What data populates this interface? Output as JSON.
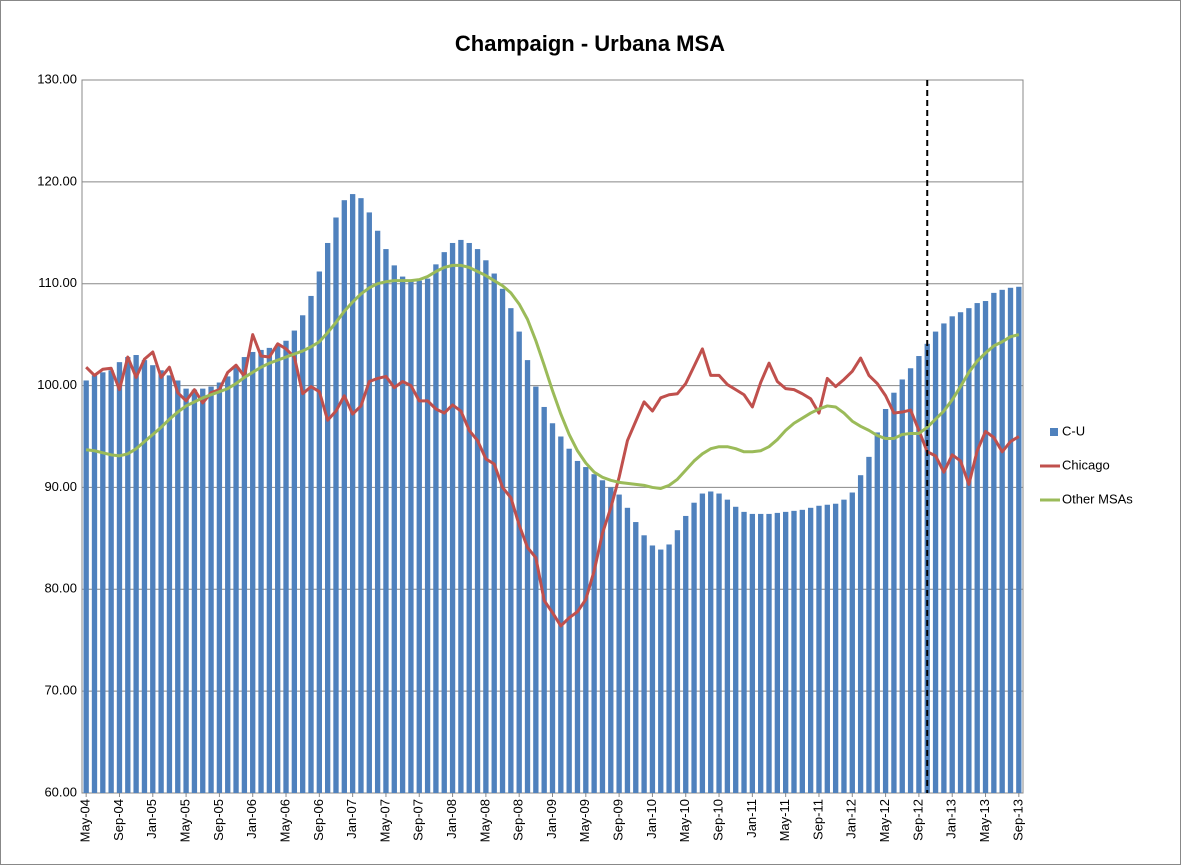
{
  "chart_data": {
    "type": "bar",
    "title": "Champaign - Urbana MSA",
    "categories": [
      "May-04",
      null,
      null,
      null,
      "Sep-04",
      null,
      null,
      null,
      "Jan-05",
      null,
      null,
      null,
      "May-05",
      null,
      null,
      null,
      "Sep-05",
      null,
      null,
      null,
      "Jan-06",
      null,
      null,
      null,
      "May-06",
      null,
      null,
      null,
      "Sep-06",
      null,
      null,
      null,
      "Jan-07",
      null,
      null,
      null,
      "May-07",
      null,
      null,
      null,
      "Sep-07",
      null,
      null,
      null,
      "Jan-08",
      null,
      null,
      null,
      "May-08",
      null,
      null,
      null,
      "Sep-08",
      null,
      null,
      null,
      "Jan-09",
      null,
      null,
      null,
      "May-09",
      null,
      null,
      null,
      "Sep-09",
      null,
      null,
      null,
      "Jan-10",
      null,
      null,
      null,
      "May-10",
      null,
      null,
      null,
      "Sep-10",
      null,
      null,
      null,
      "Jan-11",
      null,
      null,
      null,
      "May-11",
      null,
      null,
      null,
      "Sep-11",
      null,
      null,
      null,
      "Jan-12",
      null,
      null,
      null,
      "May-12",
      null,
      null,
      null,
      "Sep-12",
      null,
      null,
      null,
      "Jan-13",
      null,
      null,
      null,
      "May-13",
      null,
      null,
      null,
      "Sep-13"
    ],
    "series": [
      {
        "name": "C-U",
        "type": "bar",
        "color": "#4f81bd",
        "values": [
          100.5,
          101,
          101.3,
          101.5,
          102.3,
          102.8,
          103,
          102.5,
          102,
          101.5,
          101,
          100.5,
          99.7,
          99.6,
          99.7,
          99.9,
          100.3,
          100.9,
          101.8,
          102.8,
          103.3,
          103.5,
          103.7,
          104,
          104.4,
          105.4,
          106.9,
          108.8,
          111.2,
          114,
          116.5,
          118.2,
          118.8,
          118.4,
          117,
          115.2,
          113.4,
          111.8,
          110.7,
          110.4,
          110.3,
          110.5,
          111.9,
          113.1,
          114,
          114.3,
          114,
          113.4,
          112.3,
          111,
          109.5,
          107.6,
          105.3,
          102.5,
          99.9,
          97.9,
          96.3,
          95,
          93.8,
          92.6,
          92,
          91.3,
          90.7,
          90,
          89.3,
          88,
          86.6,
          85.3,
          84.3,
          83.9,
          84.4,
          85.8,
          87.2,
          88.5,
          89.4,
          89.6,
          89.4,
          88.8,
          88.1,
          87.6,
          87.4,
          87.4,
          87.4,
          87.5,
          87.6,
          87.7,
          87.8,
          88,
          88.2,
          88.3,
          88.4,
          88.8,
          89.5,
          91.2,
          93,
          95.4,
          97.7,
          99.3,
          100.6,
          101.7,
          102.9,
          104.1,
          105.3,
          106.1,
          106.8,
          107.2,
          107.6,
          108.1,
          108.3,
          109.1,
          109.4,
          109.6,
          109.7
        ]
      },
      {
        "name": "Chicago",
        "type": "line",
        "color": "#c0504d",
        "values": [
          101.8,
          101,
          101.6,
          101.7,
          99.6,
          102.8,
          100.8,
          102.6,
          103.3,
          100.8,
          101.8,
          99.3,
          98.5,
          99.6,
          98.3,
          99.3,
          99.6,
          101.3,
          102,
          100.9,
          105,
          102.9,
          102.8,
          104.1,
          103.6,
          102.8,
          99.2,
          99.9,
          99.4,
          96.6,
          97.5,
          99,
          97.2,
          98,
          100.4,
          100.7,
          100.9,
          99.8,
          100.4,
          100,
          98.5,
          98.5,
          97.7,
          97.3,
          98.1,
          97.5,
          95.6,
          94.6,
          92.8,
          92.3,
          90,
          89,
          86.3,
          84.1,
          83.1,
          78.9,
          77.7,
          76.4,
          77.2,
          77.8,
          79,
          81.8,
          85.5,
          88,
          91,
          94.6,
          96.5,
          98.4,
          97.5,
          98.8,
          99.1,
          99.2,
          100.2,
          101.9,
          103.6,
          101,
          101,
          100.1,
          99.6,
          99.1,
          97.9,
          100.3,
          102.2,
          100.4,
          99.7,
          99.6,
          99.2,
          98.7,
          97.3,
          100.7,
          99.9,
          100.6,
          101.4,
          102.7,
          101,
          100.2,
          99,
          97.3,
          97.4,
          97.6,
          95.6,
          93.5,
          93.1,
          91.5,
          93.2,
          92.6,
          90.3,
          93.6,
          95.5,
          94.9,
          93.5,
          94.5,
          95
        ]
      },
      {
        "name": "Other MSAs",
        "type": "line",
        "color": "#9bbb59",
        "values": [
          93.7,
          93.6,
          93.4,
          93.2,
          93.1,
          93.3,
          93.8,
          94.5,
          95.2,
          95.9,
          96.7,
          97.4,
          98,
          98.4,
          98.8,
          99.1,
          99.4,
          99.7,
          100.2,
          100.8,
          101.3,
          101.8,
          102.2,
          102.5,
          102.8,
          103.1,
          103.4,
          103.8,
          104.3,
          105.2,
          106.2,
          107.3,
          108.2,
          109,
          109.6,
          110,
          110.2,
          110.3,
          110.3,
          110.3,
          110.4,
          110.7,
          111.2,
          111.6,
          111.8,
          111.8,
          111.6,
          111.2,
          110.8,
          110.3,
          109.8,
          109.1,
          108,
          106.5,
          104.4,
          102,
          99.5,
          97.2,
          95.2,
          93.6,
          92.4,
          91.5,
          91,
          90.7,
          90.5,
          90.4,
          90.3,
          90.2,
          90,
          89.9,
          90.2,
          90.8,
          91.7,
          92.6,
          93.3,
          93.8,
          94,
          94,
          93.8,
          93.5,
          93.5,
          93.6,
          94,
          94.7,
          95.6,
          96.3,
          96.8,
          97.3,
          97.7,
          98,
          97.9,
          97.3,
          96.5,
          96,
          95.6,
          95.1,
          94.8,
          94.8,
          95.2,
          95.3,
          95.3,
          95.9,
          96.7,
          97.5,
          98.6,
          99.9,
          101.3,
          102.4,
          103.2,
          103.9,
          104.3,
          104.8,
          105
        ]
      }
    ],
    "ylim": [
      60,
      130
    ],
    "yticks": [
      {
        "value": 60,
        "label": "60.00"
      },
      {
        "value": 70,
        "label": "70.00"
      },
      {
        "value": 80,
        "label": "80.00"
      },
      {
        "value": 90,
        "label": "90.00"
      },
      {
        "value": 100,
        "label": "100.00"
      },
      {
        "value": 110,
        "label": "110.00"
      },
      {
        "value": 120,
        "label": "120.00"
      },
      {
        "value": 130,
        "label": "130.00"
      }
    ],
    "grid": true,
    "legend": "right",
    "vline_x": 101
  }
}
